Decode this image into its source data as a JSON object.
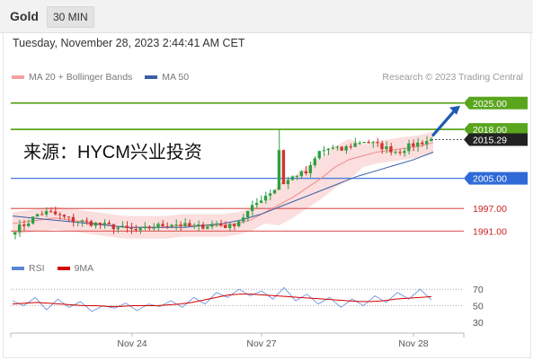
{
  "header": {
    "symbol": "Gold",
    "timeframe": "30 MIN",
    "datetime": "Tuesday, November 28, 2023 2:44:41 AM CET",
    "credit": "Research © 2023 Trading Central"
  },
  "watermark": "来源：HYCM兴业投资",
  "legend": [
    {
      "label": "MA 20 + Bollinger Bands",
      "color": "#f4a0a0"
    },
    {
      "label": "MA 50",
      "color": "#3a5fa8"
    }
  ],
  "rsi_legend": [
    {
      "label": "RSI",
      "color": "#5b86d6"
    },
    {
      "label": "9MA",
      "color": "#d40000"
    }
  ],
  "colors": {
    "resistance": "#5aa51e",
    "current": "#222222",
    "support_blue": "#2f6ad8",
    "support_red": "#e06060",
    "label_red": "#cc2222",
    "bullish": "#2ea042",
    "bearish": "#d0342c",
    "arrow": "#1f5bb0",
    "band_fill": "#fbdada"
  },
  "chart_data": {
    "type": "candlestick",
    "symbol": "Gold",
    "timeframe": "30 MIN",
    "x_ticks": [
      "Nov 24",
      "Nov 27",
      "Nov 28"
    ],
    "y_range": [
      1988,
      2029
    ],
    "levels": [
      {
        "label": "2025.00",
        "value": 2025.0,
        "kind": "resistance-target"
      },
      {
        "label": "2018.00",
        "value": 2018.0,
        "kind": "resistance"
      },
      {
        "label": "2015.29",
        "value": 2015.29,
        "kind": "current-price"
      },
      {
        "label": "2005.00",
        "value": 2005.0,
        "kind": "pivot"
      },
      {
        "label": "1997.00",
        "value": 1997.0,
        "kind": "support"
      },
      {
        "label": "1991.00",
        "value": 1991.0,
        "kind": "support"
      }
    ],
    "close_path": [
      1991.5,
      1993,
      1995.5,
      1996,
      1995,
      1994,
      1993.5,
      1993,
      1992.5,
      1992,
      1991.5,
      1991,
      1992,
      1992.5,
      1993,
      1992.5,
      1992,
      1992.5,
      1993,
      1992,
      1994,
      1997,
      2000,
      2002,
      2004,
      2006,
      2006.5,
      2012,
      2013,
      2012.5,
      2014,
      2015,
      2014,
      2013,
      2012,
      2013.5,
      2014.5,
      2015.29
    ],
    "ma20": [
      1993,
      1993.5,
      1994,
      1994.5,
      1994,
      1993.5,
      1993,
      1992.5,
      1992,
      1992,
      1992,
      1992,
      1992.5,
      1992.5,
      1992.5,
      1992.5,
      1993,
      1994,
      1996,
      1998,
      2000,
      2002.5,
      2005,
      2008,
      2010,
      2011,
      2012,
      2012.5,
      2013,
      2013.5,
      2014.5
    ],
    "ma50": [
      1995,
      1994.5,
      1994,
      1993.5,
      1993,
      1992.5,
      1992,
      1992,
      1992,
      1992,
      1992.5,
      1993,
      1994,
      1995.5,
      1997.5,
      1999.5,
      2001.5,
      2003.5,
      2005.5,
      2007,
      2008.5,
      2010,
      2012
    ],
    "rsi": {
      "levels": [
        70,
        50,
        30
      ],
      "range": [
        20,
        80
      ],
      "rsi_values": [
        56,
        50,
        60,
        45,
        58,
        48,
        55,
        43,
        50,
        47,
        53,
        44,
        52,
        49,
        56,
        48,
        60,
        52,
        66,
        60,
        70,
        62,
        68,
        58,
        72,
        56,
        64,
        52,
        60,
        48,
        58,
        50,
        62,
        54,
        66,
        58,
        70,
        57
      ],
      "ma9_values": [
        52,
        53,
        54,
        53,
        52,
        51,
        50,
        50,
        49,
        49,
        50,
        50,
        50,
        51,
        52,
        54,
        57,
        60,
        63,
        64,
        64,
        63,
        62,
        61,
        60,
        59,
        58,
        57,
        56,
        55,
        55,
        56,
        58,
        59,
        60,
        61
      ]
    }
  }
}
